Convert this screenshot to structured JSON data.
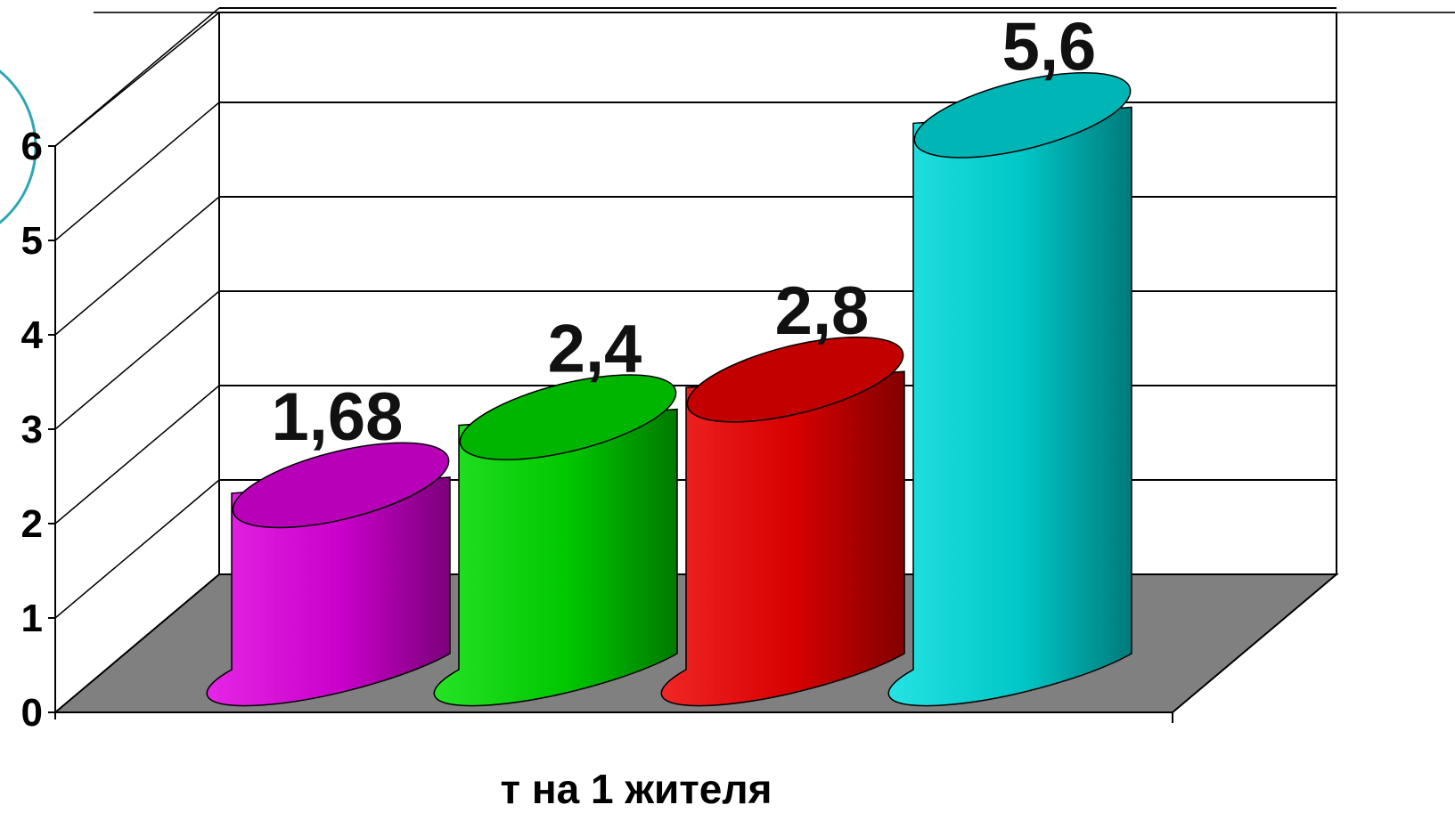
{
  "chart_data": {
    "type": "bar",
    "style": "3d-cylinder",
    "categories": [
      "",
      "",
      "",
      ""
    ],
    "values": [
      1.68,
      2.4,
      2.8,
      5.6
    ],
    "data_labels": [
      "1,68",
      "2,4",
      "2,8",
      "5,6"
    ],
    "colors": [
      "#e000e0",
      "#00dd00",
      "#ee0000",
      "#00dddd"
    ],
    "xlabel": "т на 1 жителя",
    "ylabel": "",
    "ylim": [
      0,
      6
    ],
    "yticks": [
      "0",
      "1",
      "2",
      "3",
      "4",
      "5",
      "6"
    ],
    "grid": true,
    "floor_color": "#808080"
  }
}
